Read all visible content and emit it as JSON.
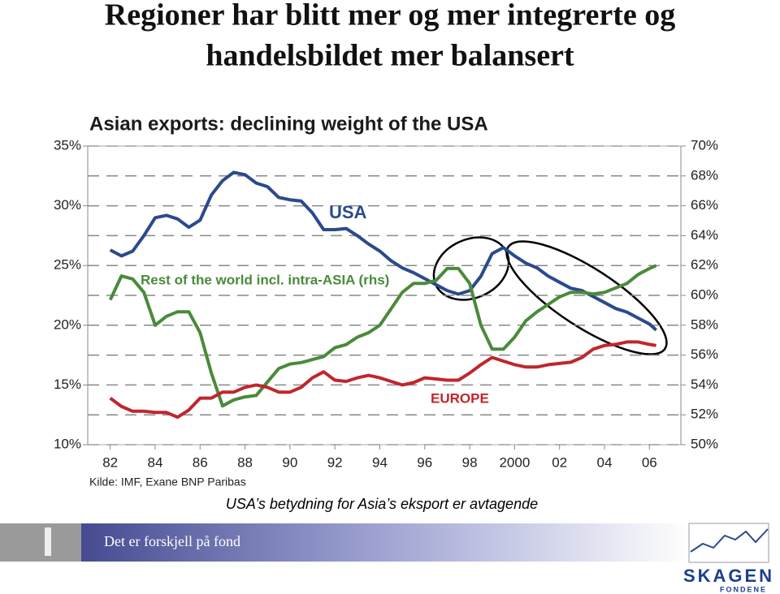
{
  "slide": {
    "title": [
      "Regioner har blitt mer og mer integrerte og",
      "handelsbildet mer balansert"
    ],
    "caption": "USA’s betydning for Asia’s eksport er avtagende",
    "footer": "Det er forskjell på fond",
    "logo": {
      "name": "SKAGEN",
      "sub": "FONDENE"
    }
  },
  "chart_data": {
    "type": "line",
    "title": "Asian exports: declining weight of the USA",
    "source": "Kilde: IMF, Exane BNP Paribas",
    "x": [
      1982,
      1982.5,
      1983,
      1983.5,
      1984,
      1984.5,
      1985,
      1985.5,
      1986,
      1986.5,
      1987,
      1987.5,
      1988,
      1988.5,
      1989,
      1989.5,
      1990,
      1990.5,
      1991,
      1991.5,
      1992,
      1992.5,
      1993,
      1993.5,
      1994,
      1994.5,
      1995,
      1995.5,
      1996,
      1996.5,
      1997,
      1997.5,
      1998,
      1998.5,
      1999,
      1999.5,
      2000,
      2000.5,
      2001,
      2001.5,
      2002,
      2002.5,
      2003,
      2003.5,
      2004,
      2004.5,
      2005,
      2005.5,
      2006,
      2006.3
    ],
    "xlim": [
      1981,
      2007.4
    ],
    "xticks": [
      {
        "value": 1982,
        "label": "82"
      },
      {
        "value": 1984,
        "label": "84"
      },
      {
        "value": 1986,
        "label": "86"
      },
      {
        "value": 1988,
        "label": "88"
      },
      {
        "value": 1990,
        "label": "90"
      },
      {
        "value": 1992,
        "label": "92"
      },
      {
        "value": 1994,
        "label": "94"
      },
      {
        "value": 1996,
        "label": "96"
      },
      {
        "value": 1998,
        "label": "98"
      },
      2000,
      {
        "value": 2002,
        "label": "02"
      },
      {
        "value": 2004,
        "label": "04"
      },
      {
        "value": 2006,
        "label": "06"
      }
    ],
    "ylim": [
      10,
      35
    ],
    "yticks": [
      {
        "value": 10,
        "label": "10%"
      },
      {
        "value": 15,
        "label": "15%"
      },
      {
        "value": 20,
        "label": "20%"
      },
      {
        "value": 25,
        "label": "25%"
      },
      {
        "value": 30,
        "label": "30%"
      },
      {
        "value": 35,
        "label": "35%"
      }
    ],
    "y2lim": [
      50,
      70
    ],
    "y2ticks": [
      {
        "value": 50,
        "label": "50%"
      },
      {
        "value": 52,
        "label": "52%"
      },
      {
        "value": 54,
        "label": "54%"
      },
      {
        "value": 56,
        "label": "56%"
      },
      {
        "value": 58,
        "label": "58%"
      },
      {
        "value": 60,
        "label": "60%"
      },
      {
        "value": 62,
        "label": "62%"
      },
      {
        "value": 64,
        "label": "64%"
      },
      {
        "value": 66,
        "label": "66%"
      },
      {
        "value": 68,
        "label": "68%"
      },
      {
        "value": 70,
        "label": "70%"
      }
    ],
    "grid": true,
    "series": [
      {
        "name": "USA",
        "color": "#2a4a8c",
        "values": [
          26.3,
          25.8,
          26.2,
          27.5,
          29.0,
          29.2,
          28.9,
          28.2,
          28.8,
          30.9,
          32.1,
          32.8,
          32.6,
          31.9,
          31.6,
          30.7,
          30.5,
          30.4,
          29.4,
          28.0,
          28.0,
          28.1,
          27.5,
          26.8,
          26.2,
          25.4,
          24.8,
          24.4,
          23.9,
          23.4,
          22.9,
          22.6,
          22.9,
          24.1,
          26.0,
          26.5,
          25.8,
          25.2,
          24.8,
          24.1,
          23.6,
          23.1,
          22.9,
          22.4,
          21.9,
          21.4,
          21.1,
          20.6,
          20.1,
          19.6
        ]
      },
      {
        "name": "Rest of the world incl. intra-ASIA (rhs)",
        "color": "#4a8a3a",
        "axis": "y2",
        "values": [
          59.7,
          61.3,
          61.1,
          60.2,
          58.0,
          58.6,
          58.9,
          58.9,
          57.5,
          54.8,
          52.6,
          53.0,
          53.2,
          53.3,
          54.2,
          55.1,
          55.4,
          55.5,
          55.7,
          55.9,
          56.5,
          56.7,
          57.2,
          57.5,
          58.0,
          59.1,
          60.2,
          60.8,
          60.8,
          61.0,
          61.8,
          61.8,
          60.8,
          58.0,
          56.4,
          56.4,
          57.2,
          58.3,
          58.9,
          59.4,
          59.9,
          60.2,
          60.2,
          60.1,
          60.2,
          60.5,
          60.8,
          61.4,
          61.8,
          62.0
        ]
      },
      {
        "name": "EUROPE",
        "color": "#c0262c",
        "values": [
          13.9,
          13.2,
          12.8,
          12.8,
          12.7,
          12.7,
          12.3,
          12.9,
          13.9,
          13.9,
          14.4,
          14.4,
          14.8,
          15.0,
          14.8,
          14.4,
          14.4,
          14.8,
          15.6,
          16.1,
          15.4,
          15.3,
          15.6,
          15.8,
          15.6,
          15.3,
          15.0,
          15.2,
          15.6,
          15.5,
          15.4,
          15.4,
          16.0,
          16.7,
          17.3,
          17.0,
          16.7,
          16.5,
          16.5,
          16.7,
          16.8,
          16.9,
          17.3,
          18.0,
          18.3,
          18.4,
          18.6,
          18.6,
          18.4,
          18.3
        ]
      }
    ]
  }
}
